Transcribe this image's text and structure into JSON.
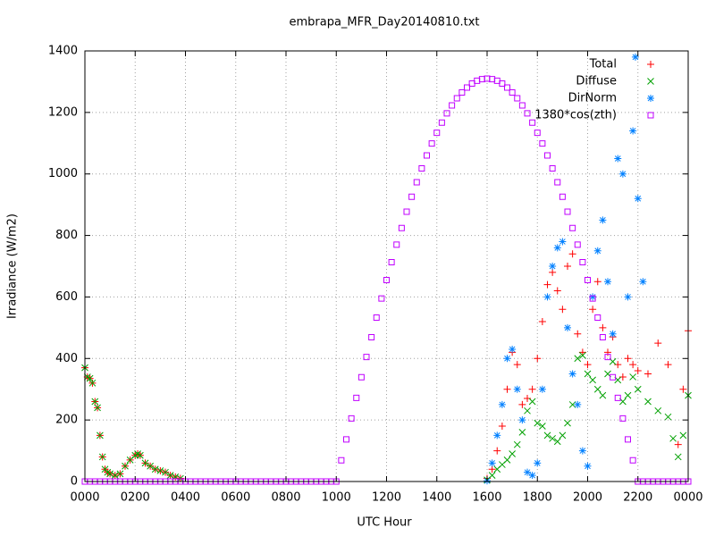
{
  "chart_data": {
    "type": "scatter",
    "title": "embrapa_MFR_Day20140810.txt",
    "x_label": "UTC Hour",
    "y_label": "Irradiance (W/m2)",
    "xlim": [
      0,
      24
    ],
    "ylim": [
      0,
      1400
    ],
    "xticks": [
      {
        "value": 0,
        "label": "0000"
      },
      {
        "value": 2,
        "label": "0200"
      },
      {
        "value": 4,
        "label": "0400"
      },
      {
        "value": 6,
        "label": "0600"
      },
      {
        "value": 8,
        "label": "0800"
      },
      {
        "value": 10,
        "label": "1000"
      },
      {
        "value": 12,
        "label": "1200"
      },
      {
        "value": 14,
        "label": "1400"
      },
      {
        "value": 16,
        "label": "1600"
      },
      {
        "value": 18,
        "label": "1800"
      },
      {
        "value": 20,
        "label": "2000"
      },
      {
        "value": 22,
        "label": "2200"
      },
      {
        "value": 24,
        "label": "0000"
      }
    ],
    "yticks": [
      0,
      200,
      400,
      600,
      800,
      1000,
      1200,
      1400
    ],
    "grid": true,
    "legend": "top-right",
    "series": [
      {
        "name": "Total",
        "color": "#ff0000",
        "marker": "plus",
        "x": [
          0,
          0.1,
          0.2,
          0.3,
          0.4,
          0.5,
          0.6,
          0.7,
          0.8,
          0.9,
          1.0,
          1.2,
          1.4,
          1.6,
          1.8,
          2.0,
          2.1,
          2.2,
          2.4,
          2.6,
          2.8,
          3.0,
          3.2,
          3.4,
          3.6,
          3.8,
          16.0,
          16.2,
          16.4,
          16.6,
          16.8,
          17.0,
          17.2,
          17.4,
          17.6,
          17.8,
          18.0,
          18.2,
          18.4,
          18.6,
          18.8,
          19.0,
          19.2,
          19.4,
          19.6,
          19.8,
          20.0,
          20.2,
          20.4,
          20.6,
          20.8,
          21.0,
          21.2,
          21.4,
          21.6,
          21.8,
          22.0,
          22.4,
          22.8,
          23.2,
          23.6,
          23.8,
          24
        ],
        "values": [
          370,
          340,
          335,
          320,
          260,
          240,
          150,
          80,
          40,
          30,
          25,
          20,
          25,
          50,
          70,
          85,
          90,
          85,
          60,
          50,
          40,
          35,
          30,
          20,
          15,
          10,
          10,
          40,
          100,
          180,
          300,
          420,
          380,
          250,
          270,
          300,
          400,
          520,
          640,
          680,
          620,
          560,
          700,
          740,
          480,
          420,
          380,
          560,
          650,
          500,
          420,
          470,
          380,
          340,
          400,
          380,
          360,
          350,
          450,
          380,
          120,
          300,
          490
        ]
      },
      {
        "name": "Diffuse",
        "color": "#00a000",
        "marker": "cross",
        "x": [
          0,
          0.1,
          0.2,
          0.3,
          0.4,
          0.5,
          0.6,
          0.7,
          0.8,
          0.9,
          1.0,
          1.2,
          1.4,
          1.6,
          1.8,
          2.0,
          2.1,
          2.2,
          2.4,
          2.6,
          2.8,
          3.0,
          3.2,
          3.4,
          3.6,
          3.8,
          16.0,
          16.2,
          16.4,
          16.6,
          16.8,
          17.0,
          17.2,
          17.4,
          17.6,
          17.8,
          18.0,
          18.2,
          18.4,
          18.6,
          18.8,
          19.0,
          19.2,
          19.4,
          19.6,
          19.8,
          20.0,
          20.2,
          20.4,
          20.6,
          20.8,
          21.0,
          21.2,
          21.4,
          21.6,
          21.8,
          22.0,
          22.4,
          22.8,
          23.2,
          23.4,
          23.6,
          23.8,
          24
        ],
        "values": [
          370,
          340,
          335,
          320,
          260,
          240,
          150,
          80,
          40,
          30,
          25,
          20,
          25,
          50,
          70,
          85,
          90,
          85,
          60,
          50,
          40,
          35,
          30,
          20,
          15,
          10,
          5,
          20,
          40,
          55,
          70,
          90,
          120,
          160,
          230,
          260,
          190,
          180,
          150,
          140,
          130,
          150,
          190,
          250,
          400,
          410,
          350,
          330,
          300,
          280,
          350,
          390,
          330,
          260,
          280,
          340,
          300,
          260,
          230,
          210,
          140,
          80,
          150,
          280
        ]
      },
      {
        "name": "DirNorm",
        "color": "#0080ff",
        "marker": "star",
        "x": [
          16.0,
          16.2,
          16.4,
          16.6,
          16.8,
          17.0,
          17.2,
          17.4,
          17.6,
          17.8,
          18.0,
          18.2,
          18.4,
          18.6,
          18.8,
          19.0,
          19.2,
          19.4,
          19.6,
          19.8,
          20.0,
          20.2,
          20.4,
          20.6,
          20.8,
          21.0,
          21.2,
          21.4,
          21.6,
          21.8,
          21.9,
          22.0,
          22.2
        ],
        "values": [
          2,
          60,
          150,
          250,
          400,
          430,
          300,
          200,
          30,
          20,
          60,
          300,
          600,
          700,
          760,
          780,
          500,
          350,
          250,
          100,
          50,
          600,
          750,
          850,
          650,
          480,
          1050,
          1000,
          600,
          1140,
          1380,
          920,
          650
        ]
      },
      {
        "name": "1380*cos(zth)",
        "color": "#c000ff",
        "marker": "square",
        "x": [
          0,
          0.2,
          0.4,
          0.6,
          0.8,
          1.0,
          1.2,
          1.4,
          1.6,
          1.8,
          2.0,
          2.2,
          2.4,
          2.6,
          2.8,
          3.0,
          3.2,
          3.4,
          3.6,
          3.8,
          4.0,
          4.2,
          4.4,
          4.6,
          4.8,
          5.0,
          5.2,
          5.4,
          5.6,
          5.8,
          6.0,
          6.2,
          6.4,
          6.6,
          6.8,
          7.0,
          7.2,
          7.4,
          7.6,
          7.8,
          8.0,
          8.2,
          8.4,
          8.6,
          8.8,
          9.0,
          9.2,
          9.4,
          9.6,
          9.8,
          10.0,
          10.2,
          10.4,
          10.6,
          10.8,
          11.0,
          11.2,
          11.4,
          11.6,
          11.8,
          12.0,
          12.2,
          12.4,
          12.6,
          12.8,
          13.0,
          13.2,
          13.4,
          13.6,
          13.8,
          14.0,
          14.2,
          14.4,
          14.6,
          14.8,
          15.0,
          15.2,
          15.4,
          15.6,
          15.8,
          16.0,
          16.2,
          16.4,
          16.6,
          16.8,
          17.0,
          17.2,
          17.4,
          17.6,
          17.8,
          18.0,
          18.2,
          18.4,
          18.6,
          18.8,
          19.0,
          19.2,
          19.4,
          19.6,
          19.8,
          20.0,
          20.2,
          20.4,
          20.6,
          20.8,
          21.0,
          21.2,
          21.4,
          21.6,
          21.8,
          22.0,
          22.2,
          22.4,
          22.6,
          22.8,
          23.0,
          23.2,
          23.4,
          23.6,
          23.8,
          24.0
        ],
        "values": [
          0,
          0,
          0,
          0,
          0,
          0,
          0,
          0,
          0,
          0,
          0,
          0,
          0,
          0,
          0,
          0,
          0,
          0,
          0,
          0,
          0,
          0,
          0,
          0,
          0,
          0,
          0,
          0,
          0,
          0,
          0,
          0,
          0,
          0,
          0,
          0,
          0,
          0,
          0,
          0,
          0,
          0,
          0,
          0,
          0,
          0,
          0,
          0,
          0,
          0,
          0,
          69,
          137,
          205,
          272,
          339,
          405,
          469,
          533,
          595,
          655,
          713,
          770,
          824,
          877,
          926,
          973,
          1018,
          1060,
          1099,
          1134,
          1167,
          1197,
          1223,
          1246,
          1265,
          1281,
          1294,
          1303,
          1308,
          1310,
          1308,
          1303,
          1294,
          1281,
          1265,
          1246,
          1223,
          1197,
          1167,
          1134,
          1099,
          1060,
          1018,
          973,
          926,
          877,
          824,
          770,
          713,
          655,
          595,
          533,
          469,
          405,
          339,
          272,
          205,
          137,
          69,
          0,
          0,
          0,
          0,
          0,
          0,
          0,
          0,
          0,
          0,
          0
        ]
      }
    ]
  }
}
